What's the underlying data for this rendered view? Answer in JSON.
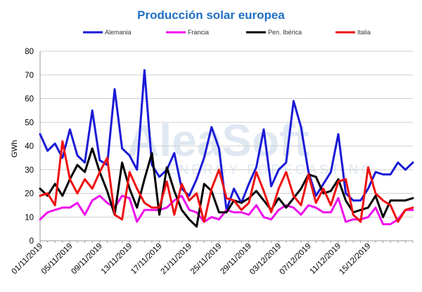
{
  "chart_data": {
    "type": "line",
    "title": "Producción solar europea",
    "ylabel": "GWh",
    "xlabel": "",
    "ylim": [
      0,
      80
    ],
    "yticks": [
      0,
      10,
      20,
      30,
      40,
      50,
      60,
      70,
      80
    ],
    "grid": "horizontal",
    "legend_position": "top",
    "x_start": "2019-11-01",
    "x_end": "2019-12-22",
    "xtick_labels": [
      "01/11/2019",
      "05/11/2019",
      "09/11/2019",
      "13/11/2019",
      "17/11/2019",
      "21/11/2019",
      "25/11/2019",
      "29/11/2019",
      "03/12/2019",
      "07/12/2019",
      "11/12/2019",
      "15/12/2019"
    ],
    "watermark": {
      "brand": "AleaSoft",
      "tagline": "ENERGY FORECASTING"
    },
    "series": [
      {
        "name": "Alemania",
        "color": "#1a1ad6",
        "values": [
          45,
          38,
          41,
          35,
          47,
          36,
          33,
          55,
          34,
          32,
          64,
          39,
          36,
          30,
          72,
          32,
          27,
          30,
          37,
          22,
          19,
          26,
          35,
          48,
          39,
          13,
          22,
          16,
          24,
          31,
          47,
          23,
          30,
          33,
          59,
          48,
          29,
          19,
          24,
          29,
          45,
          20,
          17,
          17,
          22,
          29,
          28,
          28,
          33,
          30,
          33
        ]
      },
      {
        "name": "Francia",
        "color": "#ee11ee",
        "values": [
          9,
          12,
          13,
          14,
          14,
          16,
          11,
          17,
          19,
          16,
          14,
          19,
          18,
          8,
          13,
          13,
          13,
          14,
          17,
          19,
          13,
          12,
          8,
          10,
          9,
          13,
          12,
          12,
          11,
          15,
          10,
          9,
          13,
          15,
          14,
          11,
          15,
          14,
          12,
          12,
          18,
          8,
          9,
          9,
          10,
          14,
          7,
          7,
          9,
          13,
          13
        ]
      },
      {
        "name": "Pen. Ibérica",
        "color": "#000000",
        "values": [
          22,
          19,
          24,
          19,
          26,
          32,
          29,
          39,
          29,
          21,
          11,
          33,
          22,
          14,
          26,
          37,
          11,
          31,
          21,
          13,
          9,
          6,
          24,
          21,
          12,
          12,
          17,
          16,
          18,
          21,
          17,
          13,
          18,
          14,
          18,
          22,
          28,
          27,
          20,
          21,
          26,
          17,
          12,
          13,
          14,
          19,
          10,
          17,
          17,
          17,
          18
        ]
      },
      {
        "name": "Italia",
        "color": "#ee1111",
        "values": [
          19,
          20,
          15,
          42,
          26,
          20,
          26,
          22,
          29,
          35,
          11,
          9,
          29,
          22,
          16,
          14,
          14,
          25,
          11,
          24,
          17,
          20,
          8,
          22,
          30,
          18,
          17,
          13,
          16,
          29,
          21,
          12,
          22,
          29,
          19,
          15,
          28,
          16,
          22,
          15,
          25,
          26,
          11,
          8,
          31,
          20,
          17,
          15,
          8,
          13,
          14
        ]
      }
    ]
  }
}
